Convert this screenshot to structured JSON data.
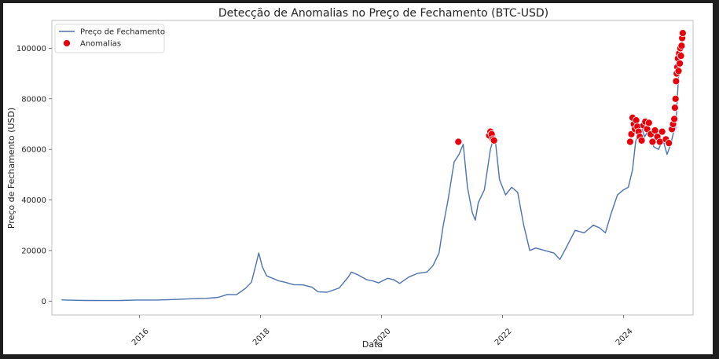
{
  "chart_data": {
    "type": "line",
    "title": "Detecção de Anomalias no Preço de Fechamento (BTC-USD)",
    "xlabel": "Data",
    "ylabel": "Preço de Fechamento (USD)",
    "xlim": [
      2014.55,
      2025.15
    ],
    "ylim": [
      -5500,
      111000
    ],
    "x_ticks": [
      2016,
      2018,
      2020,
      2022,
      2024
    ],
    "y_ticks": [
      0,
      20000,
      40000,
      60000,
      80000,
      100000
    ],
    "grid": false,
    "legend": {
      "location": "top-left",
      "entries": [
        "Preço de Fechamento",
        "Anomalias"
      ]
    },
    "colors": {
      "line": "#4c72b0",
      "anomaly": "#e8000b"
    },
    "series": [
      {
        "name": "Preço de Fechamento",
        "x": [
          2014.71,
          2014.9,
          2015.1,
          2015.4,
          2015.7,
          2015.95,
          2016.3,
          2016.6,
          2016.9,
          2017.1,
          2017.3,
          2017.45,
          2017.6,
          2017.75,
          2017.85,
          2017.92,
          2017.97,
          2018.03,
          2018.1,
          2018.2,
          2018.3,
          2018.4,
          2018.55,
          2018.7,
          2018.85,
          2018.95,
          2019.1,
          2019.3,
          2019.45,
          2019.5,
          2019.6,
          2019.75,
          2019.85,
          2019.95,
          2020.1,
          2020.2,
          2020.3,
          2020.45,
          2020.6,
          2020.75,
          2020.85,
          2020.95,
          2021.02,
          2021.1,
          2021.2,
          2021.28,
          2021.35,
          2021.42,
          2021.5,
          2021.55,
          2021.6,
          2021.7,
          2021.8,
          2021.87,
          2021.95,
          2022.05,
          2022.15,
          2022.25,
          2022.35,
          2022.45,
          2022.55,
          2022.7,
          2022.85,
          2022.95,
          2023.05,
          2023.2,
          2023.35,
          2023.5,
          2023.6,
          2023.7,
          2023.8,
          2023.9,
          2024.0,
          2024.08,
          2024.15,
          2024.2,
          2024.28,
          2024.35,
          2024.42,
          2024.5,
          2024.58,
          2024.65,
          2024.72,
          2024.78,
          2024.83,
          2024.86,
          2024.9,
          2024.93,
          2024.96
        ],
        "y": [
          450,
          350,
          250,
          230,
          260,
          420,
          430,
          650,
          950,
          1100,
          1500,
          2600,
          2500,
          5000,
          7500,
          14000,
          19000,
          13500,
          10000,
          9000,
          8000,
          7500,
          6500,
          6400,
          5500,
          3700,
          3500,
          5200,
          9500,
          11500,
          10500,
          8500,
          8000,
          7200,
          9000,
          8500,
          7000,
          9500,
          11000,
          11500,
          14000,
          19000,
          30000,
          40000,
          55000,
          58000,
          62000,
          45000,
          35000,
          32000,
          39000,
          44000,
          60000,
          66000,
          48000,
          42000,
          45000,
          43000,
          30000,
          20000,
          21000,
          20000,
          19000,
          16500,
          21000,
          28000,
          27000,
          30000,
          29000,
          27000,
          35000,
          42000,
          44000,
          45000,
          52000,
          63000,
          70000,
          65000,
          68000,
          61000,
          60000,
          64000,
          58000,
          62000,
          67000,
          68000,
          85000,
          96000,
          101000
        ]
      },
      {
        "name": "Anomalias",
        "x": [
          2021.27,
          2021.78,
          2021.8,
          2021.82,
          2021.84,
          2021.86,
          2024.11,
          2024.13,
          2024.15,
          2024.17,
          2024.19,
          2024.21,
          2024.23,
          2024.25,
          2024.27,
          2024.3,
          2024.33,
          2024.36,
          2024.39,
          2024.42,
          2024.45,
          2024.48,
          2024.52,
          2024.56,
          2024.6,
          2024.64,
          2024.7,
          2024.75,
          2024.8,
          2024.82,
          2024.84,
          2024.85,
          2024.86,
          2024.87,
          2024.88,
          2024.89,
          2024.9,
          2024.91,
          2024.92,
          2024.93,
          2024.94,
          2024.95,
          2024.96,
          2024.97,
          2024.98
        ],
        "y": [
          63000,
          65500,
          67000,
          66000,
          64000,
          63500,
          63000,
          66000,
          72500,
          70000,
          68000,
          71500,
          69000,
          67000,
          65000,
          63500,
          69500,
          71000,
          68000,
          70500,
          66000,
          63000,
          67500,
          65000,
          63000,
          67000,
          64000,
          62500,
          68000,
          70000,
          72000,
          76500,
          80000,
          87000,
          90000,
          92500,
          96000,
          91000,
          98000,
          94000,
          100000,
          97000,
          101000,
          104000,
          106000
        ]
      }
    ]
  }
}
